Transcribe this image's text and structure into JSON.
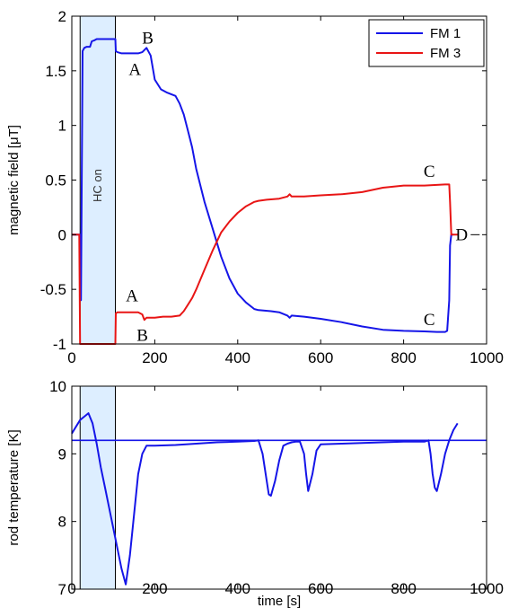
{
  "chart_data": [
    {
      "type": "line",
      "xlabel": "",
      "ylabel": "magnetic field [μT]",
      "xlim": [
        0,
        1000
      ],
      "ylim": [
        -1,
        2
      ],
      "xticks": [
        "0",
        "200",
        "400",
        "600",
        "800",
        "1000"
      ],
      "yticks": [
        "-1",
        "-0.5",
        "0",
        "0.5",
        "1",
        "1.5",
        "2"
      ],
      "grid": false,
      "legend_position": "top-right",
      "shaded_region": {
        "x_start": 20,
        "x_end": 105,
        "label": "HC on",
        "color": "#ddeeff"
      },
      "annotations": [
        {
          "text": "B",
          "x": 183,
          "y": 1.8
        },
        {
          "text": "A",
          "x": 152,
          "y": 1.51
        },
        {
          "text": "A",
          "x": 145,
          "y": -0.56
        },
        {
          "text": "B",
          "x": 170,
          "y": -0.92
        },
        {
          "text": "C",
          "x": 862,
          "y": 0.58
        },
        {
          "text": "C",
          "x": 862,
          "y": -0.78
        },
        {
          "text": "D",
          "x": 940,
          "y": 0.0
        }
      ],
      "series": [
        {
          "name": "FM 1",
          "color": "#1515e8",
          "x": [
            0,
            18,
            20,
            22,
            26,
            30,
            36,
            40,
            44,
            48,
            55,
            60,
            80,
            100,
            105,
            106,
            110,
            120,
            140,
            160,
            170,
            180,
            190,
            200,
            215,
            230,
            250,
            260,
            270,
            280,
            290,
            300,
            320,
            340,
            360,
            380,
            400,
            420,
            440,
            450,
            480,
            500,
            520,
            525,
            530,
            560,
            600,
            650,
            700,
            750,
            800,
            850,
            880,
            900,
            905,
            910,
            912,
            915,
            920
          ],
          "y": [
            0,
            0,
            0,
            -0.6,
            1.68,
            1.71,
            1.72,
            1.72,
            1.72,
            1.77,
            1.78,
            1.79,
            1.79,
            1.79,
            1.79,
            1.68,
            1.67,
            1.66,
            1.66,
            1.66,
            1.67,
            1.71,
            1.64,
            1.42,
            1.33,
            1.3,
            1.27,
            1.2,
            1.1,
            0.95,
            0.8,
            0.6,
            0.3,
            0.05,
            -0.2,
            -0.4,
            -0.54,
            -0.62,
            -0.68,
            -0.69,
            -0.7,
            -0.71,
            -0.74,
            -0.76,
            -0.74,
            -0.75,
            -0.77,
            -0.8,
            -0.84,
            -0.87,
            -0.88,
            -0.885,
            -0.89,
            -0.89,
            -0.88,
            -0.6,
            -0.1,
            0,
            0
          ]
        },
        {
          "name": "FM 3",
          "color": "#e81515",
          "x": [
            0,
            18,
            20,
            22,
            26,
            30,
            40,
            60,
            80,
            100,
            105,
            106,
            110,
            120,
            140,
            160,
            170,
            175,
            180,
            200,
            220,
            240,
            260,
            270,
            280,
            290,
            300,
            320,
            340,
            360,
            380,
            400,
            420,
            440,
            450,
            470,
            500,
            520,
            525,
            530,
            560,
            600,
            650,
            700,
            750,
            800,
            850,
            900,
            905,
            910,
            912,
            915,
            920,
            930
          ],
          "y": [
            0,
            0,
            -1,
            -1,
            -1,
            -1,
            -1,
            -1,
            -1,
            -1,
            -1,
            -0.72,
            -0.71,
            -0.71,
            -0.71,
            -0.71,
            -0.73,
            -0.78,
            -0.76,
            -0.76,
            -0.75,
            -0.75,
            -0.74,
            -0.7,
            -0.64,
            -0.58,
            -0.5,
            -0.32,
            -0.14,
            0.02,
            0.12,
            0.2,
            0.26,
            0.3,
            0.31,
            0.32,
            0.33,
            0.35,
            0.37,
            0.35,
            0.35,
            0.36,
            0.37,
            0.39,
            0.43,
            0.45,
            0.45,
            0.46,
            0.46,
            0.46,
            0.3,
            0,
            0,
            0
          ]
        }
      ]
    },
    {
      "type": "line",
      "xlabel": "time [s]",
      "ylabel": "rod temperature [K]",
      "xlim": [
        0,
        1000
      ],
      "ylim": [
        7,
        10
      ],
      "xticks": [
        "0",
        "200",
        "400",
        "600",
        "800",
        "1000"
      ],
      "yticks": [
        "7",
        "8",
        "9",
        "10"
      ],
      "grid": false,
      "shaded_region": {
        "x_start": 20,
        "x_end": 105,
        "color": "#ddeeff"
      },
      "hline": {
        "y": 9.2,
        "color": "#1515e8"
      },
      "series": [
        {
          "name": "",
          "color": "#1515e8",
          "x": [
            0,
            10,
            20,
            30,
            40,
            50,
            60,
            70,
            80,
            90,
            100,
            110,
            120,
            130,
            140,
            150,
            160,
            170,
            180,
            200,
            250,
            300,
            350,
            400,
            440,
            450,
            460,
            470,
            475,
            480,
            490,
            500,
            510,
            520,
            530,
            540,
            550,
            560,
            565,
            570,
            580,
            590,
            600,
            650,
            700,
            750,
            800,
            850,
            860,
            865,
            870,
            875,
            880,
            890,
            900,
            910,
            920,
            930
          ],
          "y": [
            9.3,
            9.4,
            9.5,
            9.55,
            9.6,
            9.45,
            9.15,
            8.8,
            8.5,
            8.2,
            7.9,
            7.6,
            7.3,
            7.07,
            7.5,
            8.1,
            8.7,
            9.0,
            9.12,
            9.12,
            9.13,
            9.15,
            9.17,
            9.18,
            9.19,
            9.2,
            9.0,
            8.6,
            8.4,
            8.38,
            8.6,
            8.9,
            9.12,
            9.15,
            9.17,
            9.18,
            9.18,
            9.0,
            8.7,
            8.45,
            8.7,
            9.05,
            9.14,
            9.15,
            9.16,
            9.17,
            9.18,
            9.18,
            9.2,
            9.0,
            8.7,
            8.5,
            8.45,
            8.7,
            9.0,
            9.2,
            9.35,
            9.45
          ]
        }
      ]
    }
  ]
}
